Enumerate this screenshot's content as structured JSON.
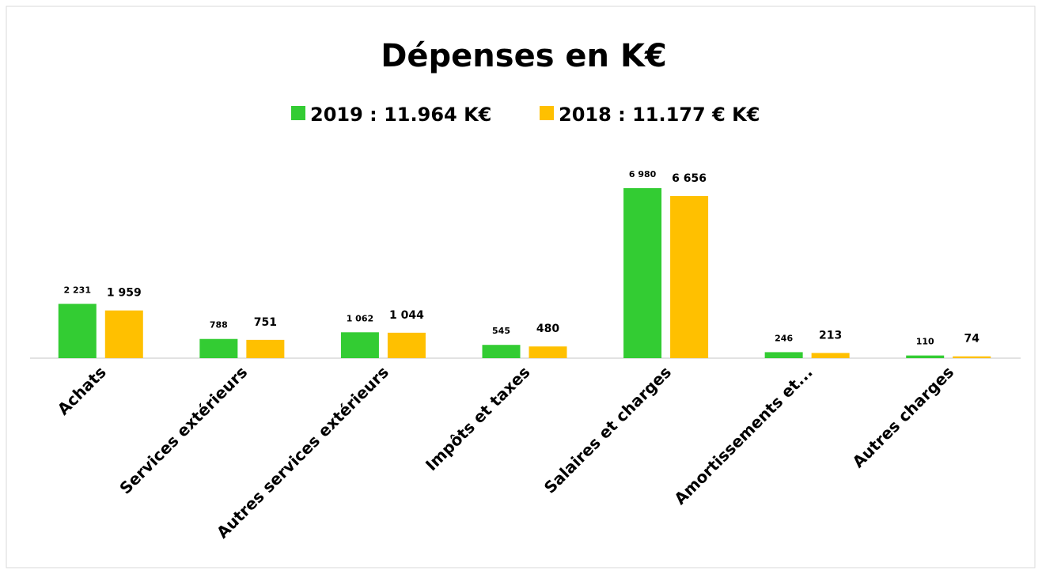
{
  "chart_data": {
    "type": "bar",
    "title": "Dépenses en K€",
    "categories": [
      "Achats",
      "Services extérieurs",
      "Autres services extérieurs",
      "Impôts et taxes",
      "Salaires et charges",
      "Amortissements et...",
      "Autres charges"
    ],
    "series": [
      {
        "name": "2019 : 11.964 K€",
        "color": "#33cc33",
        "values": [
          2231,
          788,
          1062,
          545,
          6980,
          246,
          110
        ],
        "value_labels": [
          "2 231",
          "788",
          "1 062",
          "545",
          "6 980",
          "246",
          "110"
        ]
      },
      {
        "name": "2018 : 11.177 € K€",
        "color": "#ffc000",
        "values": [
          1959,
          751,
          1044,
          480,
          6656,
          213,
          74
        ],
        "value_labels": [
          "1 959",
          "751",
          "1 044",
          "480",
          "6 656",
          "213",
          "74"
        ]
      }
    ]
  }
}
